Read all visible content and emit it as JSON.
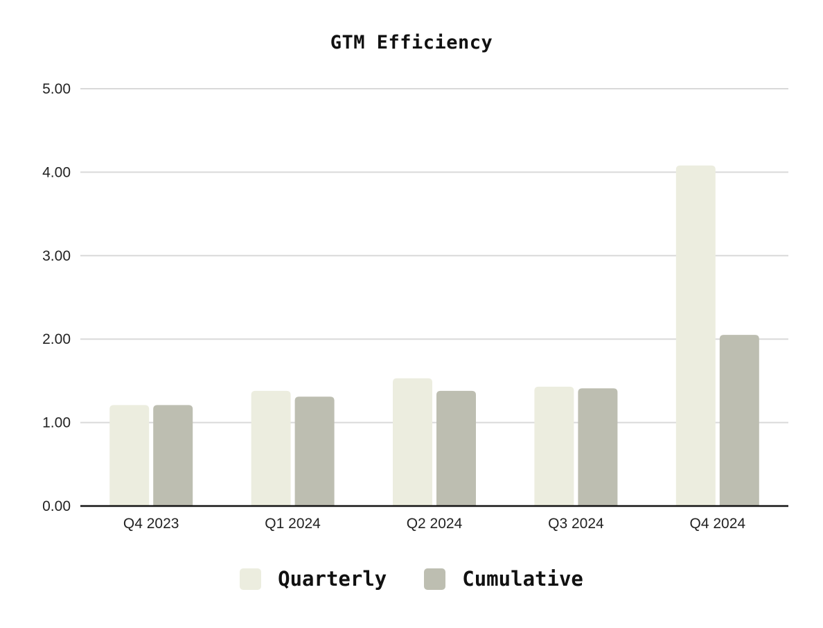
{
  "chart_data": {
    "type": "bar",
    "title": "GTM Efficiency",
    "xlabel": "",
    "ylabel": "",
    "categories": [
      "Q4 2023",
      "Q1 2024",
      "Q2 2024",
      "Q3 2024",
      "Q4 2024"
    ],
    "series": [
      {
        "name": "Quarterly",
        "color": "#ECEDDF",
        "values": [
          1.21,
          1.38,
          1.53,
          1.43,
          4.08
        ]
      },
      {
        "name": "Cumulative",
        "color": "#BDBEB1",
        "values": [
          1.21,
          1.31,
          1.38,
          1.41,
          2.05
        ]
      }
    ],
    "ylim": [
      0,
      5
    ],
    "yticks": [
      0,
      1,
      2,
      3,
      4,
      5
    ],
    "ytick_labels": [
      "0.00",
      "1.00",
      "2.00",
      "3.00",
      "4.00",
      "5.00"
    ],
    "grid": true,
    "legend_position": "bottom"
  }
}
